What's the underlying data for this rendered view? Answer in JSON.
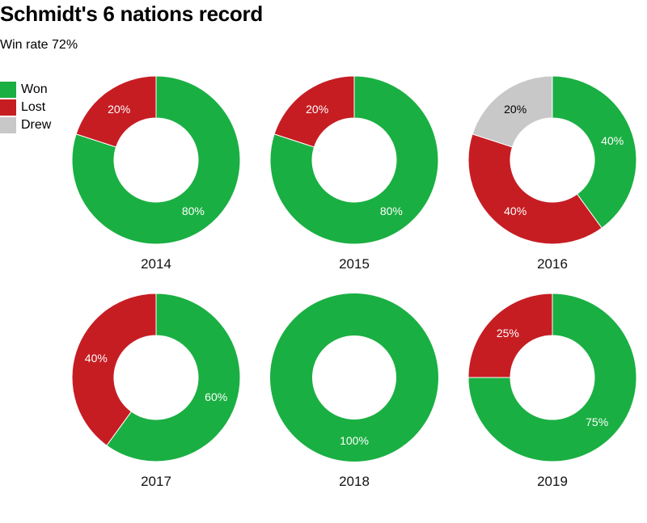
{
  "title": "Schmidt's 6 nations record",
  "subtitle": "Win rate 72%",
  "colors": {
    "won": "#1aaf42",
    "lost": "#c61d23",
    "drew": "#c8c8c8"
  },
  "legend": [
    {
      "label": "Won",
      "color": "#1aaf42"
    },
    {
      "label": "Lost",
      "color": "#c61d23"
    },
    {
      "label": "Drew",
      "color": "#c8c8c8"
    }
  ],
  "chart_data": {
    "type": "pie",
    "variant": "donut",
    "title": "Schmidt's 6 nations record",
    "subtitle": "Win rate 72%",
    "legend_position": "top-left",
    "legend": [
      "Won",
      "Lost",
      "Drew"
    ],
    "charts": [
      {
        "label": "2014",
        "slices": [
          {
            "name": "Won",
            "value": 80,
            "text": "80%"
          },
          {
            "name": "Lost",
            "value": 20,
            "text": "20%"
          }
        ]
      },
      {
        "label": "2015",
        "slices": [
          {
            "name": "Won",
            "value": 80,
            "text": "80%"
          },
          {
            "name": "Lost",
            "value": 20,
            "text": "20%"
          }
        ]
      },
      {
        "label": "2016",
        "slices": [
          {
            "name": "Won",
            "value": 40,
            "text": "40%"
          },
          {
            "name": "Lost",
            "value": 40,
            "text": "40%"
          },
          {
            "name": "Drew",
            "value": 20,
            "text": "20%"
          }
        ]
      },
      {
        "label": "2017",
        "slices": [
          {
            "name": "Won",
            "value": 60,
            "text": "60%"
          },
          {
            "name": "Lost",
            "value": 40,
            "text": "40%"
          }
        ]
      },
      {
        "label": "2018",
        "slices": [
          {
            "name": "Won",
            "value": 100,
            "text": "100%"
          }
        ]
      },
      {
        "label": "2019",
        "slices": [
          {
            "name": "Won",
            "value": 75,
            "text": "75%"
          },
          {
            "name": "Lost",
            "value": 25,
            "text": "25%"
          }
        ]
      }
    ]
  }
}
